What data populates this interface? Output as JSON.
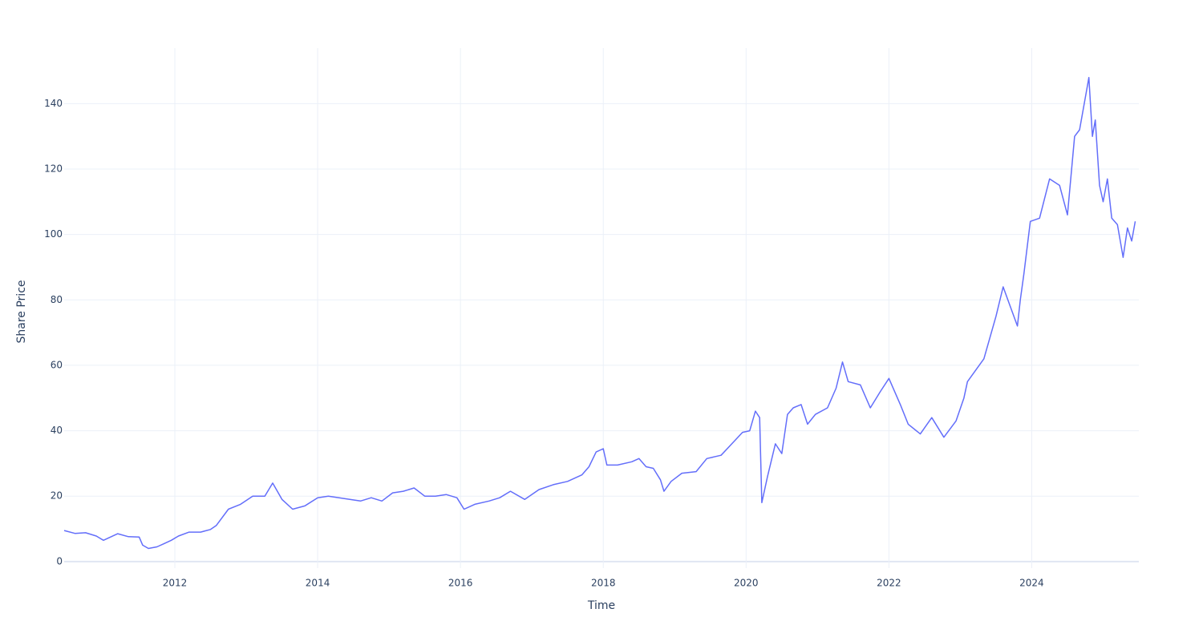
{
  "chart_data": {
    "type": "line",
    "x_label": "Time",
    "y_label": "Share Price",
    "xlim": [
      2010.45,
      2025.5
    ],
    "xticks": [
      2012,
      2014,
      2016,
      2018,
      2020,
      2022,
      2024
    ],
    "ylim": [
      -2,
      157
    ],
    "yticks": [
      0,
      20,
      40,
      60,
      80,
      100,
      120,
      140
    ],
    "grid": true,
    "series": [
      {
        "color": "#636efa",
        "x": [
          2010.45,
          2010.6,
          2010.75,
          2010.9,
          2011.0,
          2011.1,
          2011.2,
          2011.35,
          2011.5,
          2011.55,
          2011.63,
          2011.75,
          2011.85,
          2011.95,
          2012.05,
          2012.2,
          2012.36,
          2012.5,
          2012.58,
          2012.75,
          2012.92,
          2013.09,
          2013.26,
          2013.37,
          2013.5,
          2013.65,
          2013.82,
          2014.0,
          2014.15,
          2014.3,
          2014.45,
          2014.6,
          2014.75,
          2014.9,
          2015.05,
          2015.2,
          2015.35,
          2015.5,
          2015.65,
          2015.8,
          2015.95,
          2016.05,
          2016.2,
          2016.4,
          2016.55,
          2016.7,
          2016.9,
          2017.1,
          2017.3,
          2017.5,
          2017.7,
          2017.8,
          2017.9,
          2018.0,
          2018.05,
          2018.2,
          2018.4,
          2018.5,
          2018.6,
          2018.7,
          2018.8,
          2018.85,
          2018.95,
          2019.1,
          2019.3,
          2019.45,
          2019.65,
          2019.8,
          2019.95,
          2020.05,
          2020.13,
          2020.19,
          2020.22,
          2020.3,
          2020.41,
          2020.5,
          2020.58,
          2020.66,
          2020.77,
          2020.86,
          2020.97,
          2021.14,
          2021.26,
          2021.35,
          2021.43,
          2021.6,
          2021.74,
          2021.88,
          2022.0,
          2022.16,
          2022.27,
          2022.44,
          2022.6,
          2022.77,
          2022.94,
          2023.05,
          2023.1,
          2023.33,
          2023.5,
          2023.6,
          2023.7,
          2023.8,
          2023.84,
          2023.89,
          2023.98,
          2024.11,
          2024.25,
          2024.39,
          2024.5,
          2024.6,
          2024.67,
          2024.76,
          2024.8,
          2024.85,
          2024.89,
          2024.95,
          2025.0,
          2025.06,
          2025.12,
          2025.2,
          2025.28,
          2025.34,
          2025.4,
          2025.45
        ],
        "values": [
          9.5,
          8.6,
          8.8,
          7.8,
          6.5,
          7.5,
          8.5,
          7.6,
          7.5,
          5,
          4,
          4.5,
          5.5,
          6.5,
          7.8,
          9,
          9,
          9.8,
          11,
          16,
          17.5,
          20,
          20,
          24,
          19,
          16,
          17,
          19.5,
          20,
          19.5,
          19,
          18.5,
          19.5,
          18.5,
          21,
          21.5,
          22.5,
          20,
          20,
          20.5,
          19.5,
          16,
          17.5,
          18.5,
          19.5,
          21.5,
          19,
          22,
          23.5,
          24.5,
          26.5,
          29,
          33.5,
          34.5,
          29.5,
          29.5,
          30.5,
          31.5,
          29,
          28.5,
          25,
          21.5,
          24.5,
          27,
          27.5,
          31.5,
          32.5,
          36,
          39.5,
          40,
          46,
          44,
          18,
          26,
          36,
          33,
          45,
          47,
          48,
          42,
          45,
          47,
          53,
          61,
          55,
          54,
          47,
          52,
          56,
          48,
          42,
          39,
          44,
          38,
          43,
          50,
          55,
          62,
          75,
          84,
          78,
          72,
          80,
          88,
          104,
          105,
          117,
          115,
          106,
          130,
          132,
          143,
          148,
          130,
          135,
          115,
          110,
          117,
          105,
          103,
          93,
          102,
          98,
          104
        ]
      }
    ]
  }
}
